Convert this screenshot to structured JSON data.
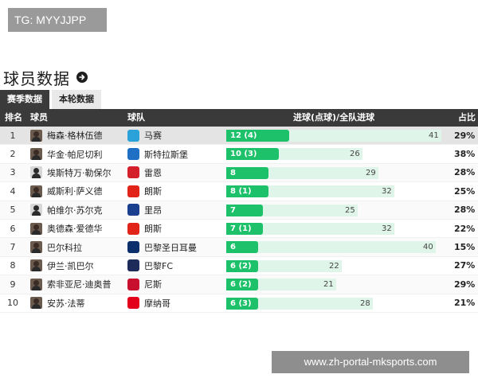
{
  "tg_tag": "TG: MYYJJPP",
  "section": {
    "title": "球员数据",
    "icon": "arrow-right-circle-icon"
  },
  "tabs": [
    {
      "label": "赛季数据",
      "active": true
    },
    {
      "label": "本轮数据",
      "active": false
    }
  ],
  "table": {
    "headers": {
      "rank": "排名",
      "player": "球员",
      "team": "球队",
      "goals": "进球(点球)/全队进球",
      "share": "占比"
    },
    "rows": [
      {
        "rank": "1",
        "player": "梅森·格林伍德",
        "team": "马赛",
        "goals_label": "12 (4)",
        "goals": 12,
        "team_goals": 41,
        "share": "29%",
        "avatar": "photo",
        "crest": "marseille-crest-icon",
        "crest_color": "#2aa1d8"
      },
      {
        "rank": "2",
        "player": "华金·帕尼切利",
        "team": "斯特拉斯堡",
        "goals_label": "10 (3)",
        "goals": 10,
        "team_goals": 26,
        "share": "38%",
        "avatar": "photo",
        "crest": "strasbourg-crest-icon",
        "crest_color": "#1f6fc4"
      },
      {
        "rank": "3",
        "player": "埃斯特万·勒保尔",
        "team": "雷恩",
        "goals_label": "8",
        "goals": 8,
        "team_goals": 29,
        "share": "28%",
        "avatar": "silhouette",
        "crest": "rennes-crest-icon",
        "crest_color": "#d3202b"
      },
      {
        "rank": "4",
        "player": "威斯利·萨义德",
        "team": "朗斯",
        "goals_label": "8 (1)",
        "goals": 8,
        "team_goals": 32,
        "share": "25%",
        "avatar": "photo",
        "crest": "lens-crest-icon",
        "crest_color": "#e2231a"
      },
      {
        "rank": "5",
        "player": "帕维尔·苏尔克",
        "team": "里昂",
        "goals_label": "7",
        "goals": 7,
        "team_goals": 25,
        "share": "28%",
        "avatar": "silhouette",
        "crest": "lyon-crest-icon",
        "crest_color": "#1b3f8f"
      },
      {
        "rank": "6",
        "player": "奥德森·爱德华",
        "team": "朗斯",
        "goals_label": "7 (1)",
        "goals": 7,
        "team_goals": 32,
        "share": "22%",
        "avatar": "photo",
        "crest": "lens-crest-icon",
        "crest_color": "#e2231a"
      },
      {
        "rank": "7",
        "player": "巴尔科拉",
        "team": "巴黎圣日耳曼",
        "goals_label": "6",
        "goals": 6,
        "team_goals": 40,
        "share": "15%",
        "avatar": "photo",
        "crest": "psg-crest-icon",
        "crest_color": "#0b2f6a"
      },
      {
        "rank": "8",
        "player": "伊兰·凯巴尔",
        "team": "巴黎FC",
        "goals_label": "6 (2)",
        "goals": 6,
        "team_goals": 22,
        "share": "27%",
        "avatar": "photo",
        "crest": "paris-fc-crest-icon",
        "crest_color": "#1d2b5a"
      },
      {
        "rank": "9",
        "player": "索非亚尼·迪奥普",
        "team": "尼斯",
        "goals_label": "6 (2)",
        "goals": 6,
        "team_goals": 21,
        "share": "29%",
        "avatar": "photo",
        "crest": "nice-crest-icon",
        "crest_color": "#c8102e"
      },
      {
        "rank": "10",
        "player": "安苏·法蒂",
        "team": "摩纳哥",
        "goals_label": "6 (3)",
        "goals": 6,
        "team_goals": 28,
        "share": "21%",
        "avatar": "photo",
        "crest": "monaco-crest-icon",
        "crest_color": "#e3001b"
      }
    ],
    "bar_scale_max": 41
  },
  "watermark": "www.zh-portal-mksports.com",
  "colors": {
    "bar_fill": "#1cc16a",
    "bar_track": "#dff5ea",
    "header_bg": "#3a3a3a",
    "tab_active": "#3b3b3b"
  }
}
